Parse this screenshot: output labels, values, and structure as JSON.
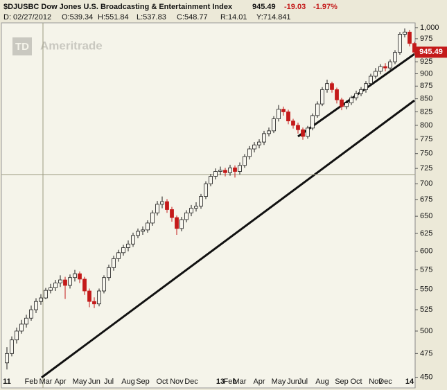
{
  "chart_data": {
    "type": "candlestick",
    "title": "$DJUSBC Dow Jones U.S. Broadcasting & Entertainment Index",
    "last": "945.49",
    "change": "-19.03",
    "change_pct": "-1.97%",
    "info": [
      "D: 02/27/2012",
      "O:539.34",
      "H:551.84",
      "L:537.83",
      "C:548.77",
      "R:14.01",
      "Y:714.841"
    ],
    "logo": {
      "mark": "TD",
      "name": "Ameritrade"
    },
    "log_scale": true,
    "up_color": "#f7f6ee",
    "down_color": "#c41a1a",
    "outline_color": "#1a1a1a",
    "crosshair_y": 714.841,
    "categories": [
      "11",
      null,
      null,
      null,
      null,
      "Feb",
      null,
      null,
      "Mar",
      null,
      null,
      "Apr",
      null,
      null,
      null,
      "May",
      null,
      null,
      "Jun",
      null,
      null,
      "Jul",
      null,
      null,
      null,
      "Aug",
      null,
      null,
      "Sep",
      null,
      null,
      null,
      "Oct",
      null,
      null,
      "Nov",
      null,
      null,
      "Dec",
      null,
      null,
      null,
      null,
      null,
      "13",
      null,
      "Feb",
      null,
      "Mar",
      null,
      null,
      null,
      "Apr",
      null,
      null,
      null,
      "May",
      null,
      null,
      "Jun",
      null,
      "Jul",
      null,
      null,
      null,
      "Aug",
      null,
      null,
      null,
      "Sep",
      null,
      null,
      "Oct",
      null,
      null,
      null,
      "Nov",
      null,
      "Dec",
      null,
      null,
      null,
      null,
      "14",
      null
    ],
    "open": [
      465,
      475,
      490,
      500,
      508,
      515,
      525,
      535,
      539.34,
      548.77,
      552,
      558,
      562,
      555,
      565,
      570,
      563,
      548,
      535,
      532,
      548,
      565,
      578,
      590,
      598,
      605,
      610,
      622,
      628,
      630,
      640,
      655,
      668,
      672,
      660,
      648,
      632,
      645,
      655,
      662,
      665,
      680,
      700,
      712,
      720,
      722,
      718,
      726,
      720,
      730,
      745,
      758,
      765,
      770,
      785,
      790,
      812,
      830,
      825,
      808,
      800,
      792,
      780,
      795,
      818,
      840,
      868,
      880,
      868,
      848,
      835,
      842,
      852,
      860,
      868,
      880,
      895,
      905,
      915,
      912,
      925,
      945,
      985,
      990,
      964.52
    ],
    "high": [
      482,
      494,
      504,
      513,
      519,
      530,
      539,
      544,
      551.84,
      557,
      562,
      568,
      566,
      569,
      575,
      573,
      566,
      551,
      540,
      551,
      568,
      582,
      594,
      602,
      609,
      615,
      626,
      632,
      635,
      644,
      659,
      673,
      680,
      676,
      664,
      651,
      649,
      659,
      667,
      671,
      684,
      704,
      716,
      725,
      728,
      726,
      731,
      730,
      735,
      749,
      763,
      770,
      775,
      790,
      796,
      817,
      838,
      835,
      829,
      812,
      805,
      796,
      799,
      822,
      845,
      873,
      888,
      884,
      872,
      852,
      847,
      856,
      866,
      873,
      885,
      900,
      912,
      920,
      922,
      930,
      950,
      990,
      998,
      995,
      968
    ],
    "low": [
      458,
      472,
      486,
      497,
      504,
      512,
      521,
      531,
      537.83,
      545,
      548,
      553,
      538,
      551,
      560,
      558,
      543,
      528,
      527,
      529,
      545,
      561,
      574,
      586,
      594,
      600,
      606,
      618,
      623,
      626,
      636,
      651,
      662,
      655,
      642,
      623,
      628,
      641,
      650,
      657,
      661,
      676,
      696,
      707,
      714,
      712,
      713,
      710,
      715,
      726,
      740,
      752,
      759,
      765,
      780,
      786,
      807,
      818,
      802,
      794,
      785,
      774,
      776,
      791,
      814,
      836,
      862,
      862,
      841,
      828,
      830,
      838,
      847,
      855,
      862,
      875,
      890,
      899,
      905,
      907,
      920,
      940,
      978,
      958,
      940
    ],
    "close": [
      475,
      490,
      500,
      508,
      515,
      525,
      535,
      539.34,
      548.77,
      552,
      558,
      562,
      555,
      565,
      570,
      563,
      548,
      535,
      532,
      548,
      565,
      578,
      590,
      598,
      605,
      610,
      622,
      628,
      630,
      640,
      655,
      668,
      672,
      660,
      648,
      632,
      645,
      655,
      662,
      665,
      680,
      700,
      712,
      720,
      722,
      718,
      726,
      720,
      730,
      745,
      758,
      765,
      770,
      785,
      790,
      812,
      830,
      825,
      808,
      800,
      792,
      780,
      795,
      818,
      840,
      868,
      880,
      868,
      848,
      835,
      842,
      852,
      860,
      868,
      880,
      895,
      905,
      915,
      912,
      925,
      945,
      985,
      990,
      964.52,
      945.49
    ],
    "ylim": [
      444,
      1011
    ],
    "yticks": [
      450,
      475,
      500,
      525,
      550,
      575,
      600,
      625,
      650,
      675,
      700,
      725,
      750,
      775,
      800,
      825,
      850,
      875,
      900,
      925,
      950,
      975,
      {
        "value": 1000,
        "label": "1,000"
      }
    ]
  }
}
